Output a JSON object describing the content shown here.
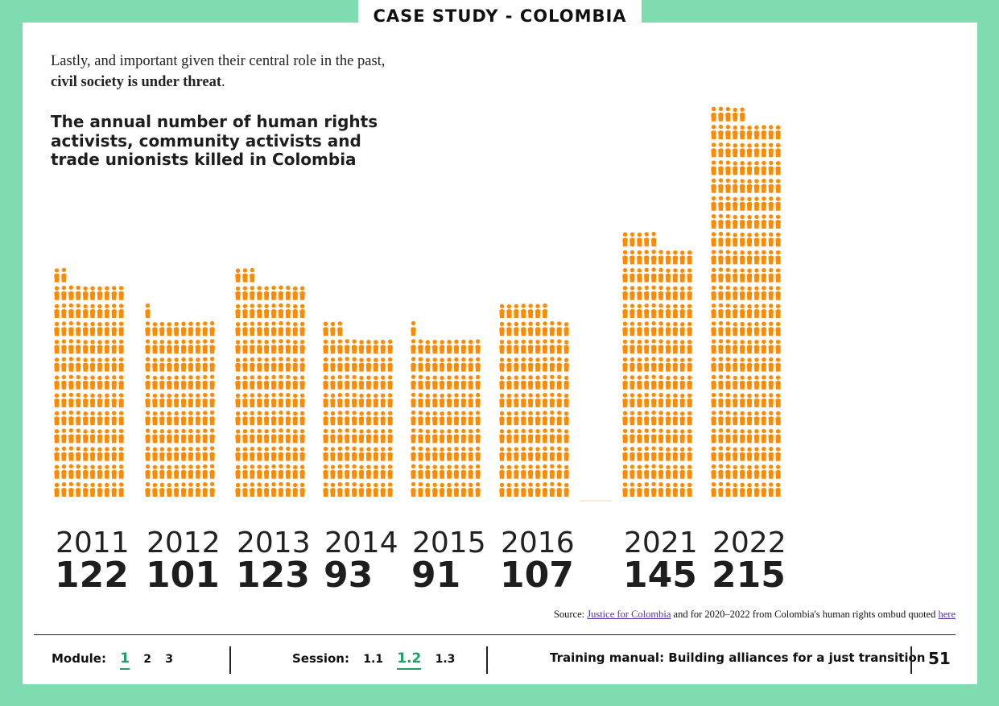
{
  "header": {
    "tab_title": "CASE STUDY - COLOMBIA"
  },
  "intro": {
    "text_before": "Lastly, and important given their central role in the past, ",
    "text_bold": "civil society is under threat",
    "text_after": "."
  },
  "chart_data": {
    "type": "bar",
    "title": "The annual number of human rights activists, community activists and trade unionists killed in Colombia",
    "categories": [
      "2011",
      "2012",
      "2013",
      "2014",
      "2015",
      "2016",
      "2021",
      "2022"
    ],
    "values": [
      122,
      101,
      123,
      93,
      91,
      107,
      145,
      215
    ],
    "encoding": "pictogram",
    "icon": "person-icon",
    "color": "#ff8a00"
  },
  "source": {
    "prefix": "Source: ",
    "link1": "Justice for Colombia",
    "middle": " and for 2020–2022 from Colombia's human rights ombud quoted ",
    "link2": "here"
  },
  "footer": {
    "module_label": "Module:",
    "modules": [
      "1",
      "2",
      "3"
    ],
    "active_module": "1",
    "session_label": "Session:",
    "sessions": [
      "1.1",
      "1.2",
      "1.3"
    ],
    "active_session": "1.2",
    "manual_title": "Training manual: Building alliances for a just transition",
    "page_number": "51"
  },
  "colors": {
    "accent": "#7fdcb0",
    "icon": "#ff8a00",
    "active": "#20a060"
  }
}
